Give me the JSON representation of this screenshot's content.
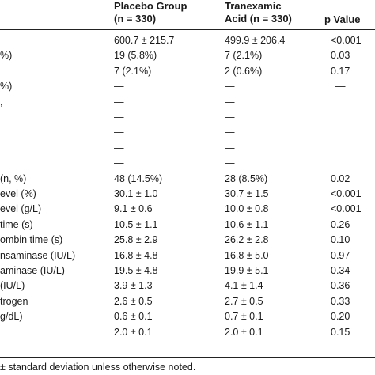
{
  "header": {
    "placebo_line1": "Placebo Group",
    "placebo_line2": "(n = 330)",
    "txa_line1": "Tranexamic",
    "txa_line2": "Acid (n = 330)",
    "p_value": "p Value"
  },
  "rows": [
    {
      "label": "",
      "placebo": "600.7 ± 215.7",
      "txa": "499.9 ± 206.4",
      "p": "<0.001"
    },
    {
      "label": "%)",
      "placebo": "19 (5.8%)",
      "txa": "7 (2.1%)",
      "p": "0.03"
    },
    {
      "label": "",
      "placebo": "7 (2.1%)",
      "txa": "2 (0.6%)",
      "p": "0.17"
    },
    {
      "label": "%)",
      "placebo": "—",
      "txa": "—",
      "p": "—"
    },
    {
      "label": ",",
      "placebo": "—",
      "txa": "—",
      "p": ""
    },
    {
      "label": "",
      "placebo": "—",
      "txa": "—",
      "p": ""
    },
    {
      "label": "",
      "placebo": "—",
      "txa": "—",
      "p": ""
    },
    {
      "label": "",
      "placebo": "—",
      "txa": "—",
      "p": ""
    },
    {
      "label": "",
      "placebo": "—",
      "txa": "—",
      "p": ""
    },
    {
      "label": "(n, %)",
      "placebo": "48 (14.5%)",
      "txa": "28 (8.5%)",
      "p": "0.02"
    },
    {
      "label": "evel (%)",
      "placebo": "30.1 ± 1.0",
      "txa": "30.7 ± 1.5",
      "p": "<0.001"
    },
    {
      "label": "evel (g/L)",
      "placebo": "9.1 ± 0.6",
      "txa": "10.0 ± 0.8",
      "p": "<0.001"
    },
    {
      "label": "time (s)",
      "placebo": "10.5 ± 1.1",
      "txa": "10.6 ± 1.1",
      "p": "0.26"
    },
    {
      "label": "ombin time (s)",
      "placebo": "25.8 ± 2.9",
      "txa": "26.2 ± 2.8",
      "p": "0.10"
    },
    {
      "label": "nsaminase (IU/L)",
      "placebo": "16.8 ± 4.8",
      "txa": "16.8 ± 5.0",
      "p": "0.97"
    },
    {
      "label": "aminase (IU/L)",
      "placebo": "19.5 ± 4.8",
      "txa": "19.9 ± 5.1",
      "p": "0.34"
    },
    {
      "label": "(IU/L)",
      "placebo": "3.9 ± 1.3",
      "txa": "4.1 ± 1.4",
      "p": "0.36"
    },
    {
      "label": "trogen",
      "placebo": "2.6 ± 0.5",
      "txa": "2.7 ± 0.5",
      "p": "0.33"
    },
    {
      "label": "g/dL)",
      "placebo": "0.6 ± 0.1",
      "txa": "0.7 ± 0.1",
      "p": "0.20"
    },
    {
      "label": "",
      "placebo": "2.0 ± 0.1",
      "txa": "2.0 ± 0.1",
      "p": "0.15"
    }
  ],
  "footnote": "± standard deviation unless otherwise noted."
}
